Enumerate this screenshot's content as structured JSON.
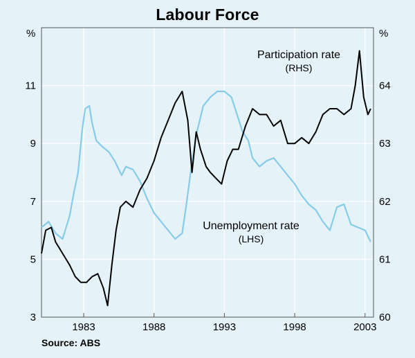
{
  "chart_data": {
    "type": "line",
    "title": "Labour Force",
    "source": "Source: ABS",
    "left_axis": {
      "unit": "%",
      "range": [
        3,
        13
      ],
      "ticks": [
        3,
        5,
        7,
        9,
        11
      ]
    },
    "right_axis": {
      "unit": "%",
      "range": [
        60,
        65
      ],
      "ticks": [
        60,
        61,
        62,
        63,
        64
      ]
    },
    "x_axis": {
      "range": [
        1980,
        2003.6
      ],
      "tick_labels": [
        "1983",
        "1988",
        "1993",
        "1998",
        "2003"
      ],
      "tick_positions": [
        1983,
        1988,
        1993,
        1998,
        2003
      ]
    },
    "grid": true,
    "series": [
      {
        "name": "Unemployment rate",
        "axis_note": "(LHS)",
        "axis": "left",
        "color": "#86cce9",
        "x": [
          1980.0,
          1980.5,
          1981.0,
          1981.5,
          1982.0,
          1982.3,
          1982.6,
          1982.9,
          1983.1,
          1983.4,
          1983.6,
          1983.9,
          1984.3,
          1984.8,
          1985.2,
          1985.7,
          1986.0,
          1986.5,
          1987.0,
          1987.5,
          1988.0,
          1988.5,
          1989.0,
          1989.5,
          1990.0,
          1990.3,
          1990.6,
          1991.0,
          1991.5,
          1992.0,
          1992.5,
          1993.0,
          1993.5,
          1993.9,
          1994.3,
          1994.7,
          1995.0,
          1995.5,
          1996.0,
          1996.5,
          1997.0,
          1997.5,
          1998.0,
          1998.5,
          1999.0,
          1999.5,
          2000.0,
          2000.5,
          2001.0,
          2001.5,
          2002.0,
          2002.5,
          2003.0,
          2003.4
        ],
        "y": [
          6.1,
          6.3,
          5.9,
          5.7,
          6.5,
          7.3,
          8.0,
          9.5,
          10.2,
          10.3,
          9.7,
          9.1,
          8.9,
          8.7,
          8.4,
          7.9,
          8.2,
          8.1,
          7.7,
          7.1,
          6.6,
          6.3,
          6.0,
          5.7,
          5.9,
          6.9,
          8.0,
          9.3,
          10.3,
          10.6,
          10.8,
          10.8,
          10.6,
          10.0,
          9.4,
          9.1,
          8.5,
          8.2,
          8.4,
          8.5,
          8.2,
          7.9,
          7.6,
          7.2,
          6.9,
          6.7,
          6.3,
          6.0,
          6.8,
          6.9,
          6.2,
          6.1,
          6.0,
          5.6
        ]
      },
      {
        "name": "Participation rate",
        "axis_note": "(RHS)",
        "axis": "right",
        "color": "#000000",
        "x": [
          1980.0,
          1980.3,
          1980.7,
          1981.0,
          1981.5,
          1982.0,
          1982.4,
          1982.8,
          1983.2,
          1983.6,
          1984.0,
          1984.4,
          1984.7,
          1985.0,
          1985.3,
          1985.6,
          1986.0,
          1986.5,
          1987.0,
          1987.5,
          1988.0,
          1988.5,
          1989.0,
          1989.5,
          1990.0,
          1990.4,
          1990.7,
          1991.0,
          1991.3,
          1991.7,
          1992.0,
          1992.4,
          1992.8,
          1993.2,
          1993.6,
          1994.0,
          1994.5,
          1995.0,
          1995.5,
          1996.0,
          1996.5,
          1997.0,
          1997.5,
          1998.0,
          1998.5,
          1999.0,
          1999.5,
          2000.0,
          2000.5,
          2001.0,
          2001.5,
          2002.0,
          2002.3,
          2002.6,
          2002.9,
          2003.2,
          2003.4
        ],
        "y": [
          61.1,
          61.5,
          61.55,
          61.3,
          61.1,
          60.9,
          60.7,
          60.6,
          60.6,
          60.7,
          60.75,
          60.5,
          60.2,
          60.9,
          61.5,
          61.9,
          62.0,
          61.9,
          62.2,
          62.4,
          62.7,
          63.1,
          63.4,
          63.7,
          63.9,
          63.4,
          62.5,
          63.2,
          62.9,
          62.6,
          62.5,
          62.4,
          62.3,
          62.7,
          62.9,
          62.9,
          63.3,
          63.6,
          63.5,
          63.5,
          63.3,
          63.4,
          63.0,
          63.0,
          63.1,
          63.0,
          63.2,
          63.5,
          63.6,
          63.6,
          63.5,
          63.6,
          64.0,
          64.6,
          63.8,
          63.5,
          63.6
        ]
      }
    ],
    "annotations": [
      {
        "text": "Participation rate",
        "series": "Participation rate"
      },
      {
        "text": "(RHS)",
        "series": "Participation rate"
      },
      {
        "text": "Unemployment rate",
        "series": "Unemployment rate"
      },
      {
        "text": "(LHS)",
        "series": "Unemployment rate"
      }
    ]
  }
}
